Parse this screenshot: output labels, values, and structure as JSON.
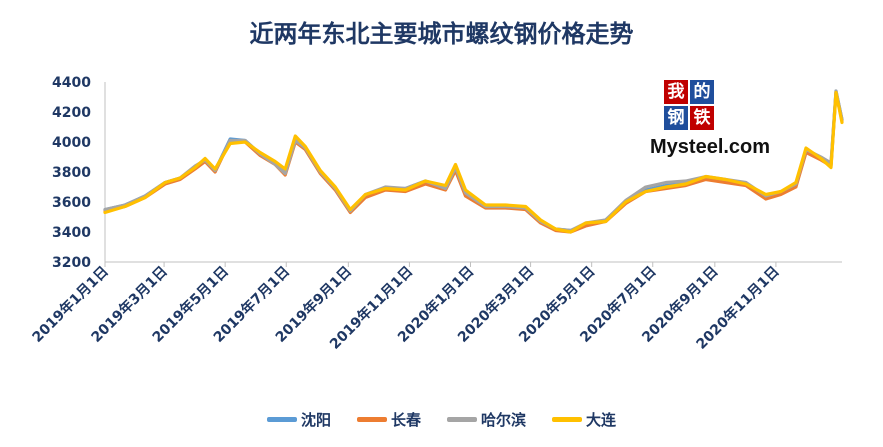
{
  "title": "近两年东北主要城市螺纹钢价格走势",
  "logo": {
    "chars": [
      "我",
      "的",
      "钢",
      "铁"
    ],
    "text": "Mysteel.com"
  },
  "legend": [
    {
      "name": "沈阳",
      "color": "#5b9bd5"
    },
    {
      "name": "长春",
      "color": "#ed7d31"
    },
    {
      "name": "哈尔滨",
      "color": "#a5a5a5"
    },
    {
      "name": "大连",
      "color": "#ffc000"
    }
  ],
  "chart_data": {
    "type": "line",
    "title": "近两年东北主要城市螺纹钢价格走势",
    "xlabel": "",
    "ylabel": "",
    "ylim": [
      3200,
      4400
    ],
    "y_ticks": [
      3200,
      3400,
      3600,
      3800,
      4000,
      4200,
      4400
    ],
    "x_ticks": [
      "2019年1月1日",
      "2019年3月1日",
      "2019年5月1日",
      "2019年7月1日",
      "2019年9月1日",
      "2019年11月1日",
      "2020年1月1日",
      "2020年3月1日",
      "2020年5月1日",
      "2020年7月1日",
      "2020年9月1日",
      "2020年11月1日"
    ],
    "x_tick_days": [
      0,
      59,
      120,
      181,
      243,
      304,
      365,
      425,
      486,
      547,
      609,
      670
    ],
    "x_range_days": [
      0,
      736
    ],
    "legend_position": "bottom",
    "grid": false,
    "series": [
      {
        "name": "沈阳",
        "color": "#5b9bd5",
        "x": [
          0,
          20,
          40,
          60,
          75,
          90,
          100,
          110,
          125,
          140,
          155,
          170,
          180,
          190,
          200,
          215,
          230,
          245,
          260,
          280,
          300,
          320,
          340,
          350,
          360,
          380,
          400,
          420,
          435,
          450,
          465,
          480,
          500,
          520,
          540,
          560,
          580,
          600,
          620,
          640,
          660,
          675,
          690,
          700,
          715,
          725,
          730,
          736
        ],
        "y": [
          3550,
          3580,
          3640,
          3730,
          3760,
          3830,
          3880,
          3810,
          4020,
          4010,
          3920,
          3860,
          3800,
          4010,
          3960,
          3800,
          3690,
          3540,
          3640,
          3690,
          3690,
          3740,
          3700,
          3840,
          3670,
          3570,
          3570,
          3560,
          3470,
          3420,
          3410,
          3450,
          3480,
          3600,
          3680,
          3710,
          3720,
          3760,
          3740,
          3720,
          3630,
          3660,
          3720,
          3940,
          3890,
          3850,
          4340,
          4150
        ]
      },
      {
        "name": "长春",
        "color": "#ed7d31",
        "x": [
          0,
          20,
          40,
          60,
          75,
          90,
          100,
          110,
          125,
          140,
          155,
          170,
          180,
          190,
          200,
          215,
          230,
          245,
          260,
          280,
          300,
          320,
          340,
          350,
          360,
          380,
          400,
          420,
          435,
          450,
          465,
          480,
          500,
          520,
          540,
          560,
          580,
          600,
          620,
          640,
          660,
          675,
          690,
          700,
          715,
          725,
          730,
          736
        ],
        "y": [
          3540,
          3570,
          3630,
          3720,
          3750,
          3820,
          3870,
          3800,
          4010,
          4000,
          3910,
          3850,
          3780,
          4000,
          3950,
          3790,
          3680,
          3530,
          3630,
          3680,
          3670,
          3720,
          3680,
          3810,
          3640,
          3560,
          3560,
          3550,
          3460,
          3410,
          3400,
          3440,
          3470,
          3590,
          3670,
          3690,
          3710,
          3750,
          3730,
          3710,
          3620,
          3650,
          3700,
          3930,
          3880,
          3840,
          4330,
          4140
        ]
      },
      {
        "name": "哈尔滨",
        "color": "#a5a5a5",
        "x": [
          0,
          20,
          40,
          60,
          75,
          90,
          100,
          110,
          125,
          140,
          155,
          170,
          180,
          190,
          200,
          215,
          230,
          245,
          260,
          280,
          300,
          320,
          340,
          350,
          360,
          380,
          400,
          420,
          435,
          450,
          465,
          480,
          500,
          520,
          540,
          560,
          580,
          600,
          620,
          640,
          660,
          675,
          690,
          700,
          715,
          725,
          730,
          736
        ],
        "y": [
          3550,
          3580,
          3640,
          3730,
          3760,
          3840,
          3880,
          3810,
          4010,
          4010,
          3920,
          3850,
          3790,
          4010,
          3960,
          3800,
          3690,
          3540,
          3650,
          3700,
          3690,
          3740,
          3690,
          3830,
          3660,
          3570,
          3570,
          3560,
          3470,
          3420,
          3410,
          3460,
          3480,
          3610,
          3700,
          3730,
          3740,
          3770,
          3750,
          3730,
          3640,
          3670,
          3720,
          3950,
          3900,
          3860,
          4340,
          4150
        ]
      },
      {
        "name": "大连",
        "color": "#ffc000",
        "x": [
          0,
          20,
          40,
          60,
          75,
          90,
          100,
          110,
          125,
          140,
          155,
          170,
          180,
          190,
          200,
          215,
          230,
          245,
          260,
          280,
          300,
          320,
          340,
          350,
          360,
          380,
          400,
          420,
          435,
          450,
          465,
          480,
          500,
          520,
          540,
          560,
          580,
          600,
          620,
          640,
          660,
          675,
          690,
          700,
          715,
          725,
          730,
          736
        ],
        "y": [
          3530,
          3570,
          3630,
          3730,
          3760,
          3830,
          3890,
          3820,
          3990,
          4000,
          3930,
          3870,
          3820,
          4040,
          3970,
          3810,
          3700,
          3550,
          3650,
          3690,
          3680,
          3740,
          3710,
          3850,
          3680,
          3580,
          3580,
          3570,
          3480,
          3420,
          3400,
          3460,
          3470,
          3600,
          3670,
          3700,
          3720,
          3770,
          3750,
          3720,
          3650,
          3670,
          3730,
          3960,
          3890,
          3830,
          4330,
          4130
        ]
      }
    ]
  }
}
